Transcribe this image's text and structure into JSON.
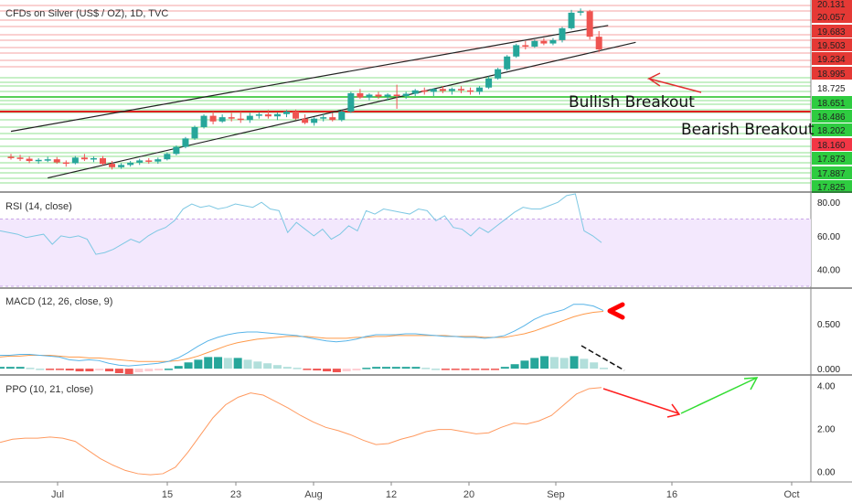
{
  "chart_data": [
    {
      "type": "candlestick",
      "title": "CFDs on Silver (US$ / OZ), 1D, TVC",
      "price_levels": [
        "20.131",
        "20.057",
        "19.683",
        "19.503",
        "19.234",
        "18.995",
        "18.725",
        "18.651",
        "18.486",
        "18.202",
        "18.160",
        "17.873",
        "17.887",
        "17.825"
      ],
      "level_colors": [
        "#e53935",
        "#e53935",
        "#e53935",
        "#e53935",
        "#e53935",
        "#e53935",
        "#ffffff",
        "#2ecc40",
        "#2ecc40",
        "#2ecc40",
        "#f23645",
        "#2ecc40",
        "#2ecc40",
        "#2ecc40"
      ],
      "level_text_colors": [
        "#222",
        "#222",
        "#222",
        "#222",
        "#222",
        "#222",
        "#222",
        "#222",
        "#222",
        "#222",
        "#ffffff",
        "#111",
        "#111",
        "#111"
      ],
      "annotations": [
        "Bullish Breakout",
        "Bearish Breakout"
      ],
      "candles": [
        [
          0,
          14.85,
          14.95,
          14.75,
          14.82
        ],
        [
          1,
          14.82,
          14.92,
          14.7,
          14.78
        ],
        [
          2,
          14.78,
          14.86,
          14.62,
          14.7
        ],
        [
          3,
          14.7,
          14.8,
          14.6,
          14.74
        ],
        [
          4,
          14.74,
          14.85,
          14.66,
          14.76
        ],
        [
          5,
          14.76,
          14.84,
          14.6,
          14.65
        ],
        [
          6,
          14.65,
          14.72,
          14.5,
          14.62
        ],
        [
          7,
          14.62,
          14.88,
          14.58,
          14.82
        ],
        [
          8,
          14.82,
          14.95,
          14.7,
          14.76
        ],
        [
          9,
          14.76,
          14.86,
          14.66,
          14.8
        ],
        [
          10,
          14.8,
          14.88,
          14.55,
          14.6
        ],
        [
          11,
          14.6,
          14.7,
          14.4,
          14.48
        ],
        [
          12,
          14.48,
          14.62,
          14.42,
          14.56
        ],
        [
          13,
          14.56,
          14.7,
          14.5,
          14.64
        ],
        [
          14,
          14.64,
          14.78,
          14.56,
          14.72
        ],
        [
          15,
          14.72,
          14.8,
          14.6,
          14.68
        ],
        [
          16,
          14.68,
          14.82,
          14.6,
          14.76
        ],
        [
          17,
          14.76,
          15.0,
          14.72,
          14.95
        ],
        [
          18,
          14.95,
          15.25,
          14.9,
          15.2
        ],
        [
          19,
          15.2,
          15.55,
          15.15,
          15.5
        ],
        [
          20,
          15.5,
          15.95,
          15.45,
          15.9
        ],
        [
          21,
          15.9,
          16.35,
          15.85,
          16.3
        ],
        [
          22,
          16.3,
          16.45,
          16.0,
          16.1
        ],
        [
          23,
          16.1,
          16.35,
          16.05,
          16.25
        ],
        [
          24,
          16.25,
          16.4,
          16.1,
          16.2
        ],
        [
          25,
          16.2,
          16.45,
          16.05,
          16.15
        ],
        [
          26,
          16.15,
          16.4,
          16.05,
          16.3
        ],
        [
          27,
          16.3,
          16.42,
          16.2,
          16.35
        ],
        [
          28,
          16.35,
          16.5,
          16.2,
          16.28
        ],
        [
          29,
          16.28,
          16.42,
          16.15,
          16.36
        ],
        [
          30,
          16.36,
          16.5,
          16.25,
          16.45
        ],
        [
          31,
          16.45,
          16.52,
          16.15,
          16.2
        ],
        [
          32,
          16.2,
          16.35,
          16.0,
          16.05
        ],
        [
          33,
          16.05,
          16.25,
          15.95,
          16.2
        ],
        [
          34,
          16.2,
          16.35,
          16.1,
          16.25
        ],
        [
          35,
          16.25,
          16.4,
          16.1,
          16.15
        ],
        [
          36,
          16.15,
          16.5,
          16.1,
          16.45
        ],
        [
          37,
          16.45,
          17.15,
          16.4,
          17.1
        ],
        [
          38,
          17.1,
          17.25,
          16.9,
          16.95
        ],
        [
          39,
          16.95,
          17.1,
          16.85,
          17.05
        ],
        [
          40,
          17.05,
          17.15,
          16.9,
          16.98
        ],
        [
          41,
          16.98,
          17.1,
          16.85,
          17.05
        ],
        [
          42,
          17.05,
          17.4,
          16.55,
          17.0
        ],
        [
          43,
          17.0,
          17.15,
          16.9,
          17.08
        ],
        [
          44,
          17.08,
          17.25,
          17.0,
          17.2
        ],
        [
          45,
          17.2,
          17.3,
          17.05,
          17.15
        ],
        [
          46,
          17.15,
          17.28,
          17.0,
          17.25
        ],
        [
          47,
          17.25,
          17.35,
          17.1,
          17.18
        ],
        [
          48,
          17.18,
          17.3,
          17.05,
          17.25
        ],
        [
          49,
          17.25,
          17.35,
          17.1,
          17.2
        ],
        [
          50,
          17.2,
          17.3,
          17.05,
          17.15
        ],
        [
          51,
          17.15,
          17.35,
          17.05,
          17.3
        ],
        [
          52,
          17.3,
          17.7,
          17.25,
          17.62
        ],
        [
          53,
          17.62,
          18.0,
          17.58,
          17.95
        ],
        [
          54,
          17.95,
          18.45,
          17.9,
          18.4
        ],
        [
          55,
          18.4,
          18.85,
          18.35,
          18.8
        ],
        [
          56,
          18.8,
          18.95,
          18.65,
          18.75
        ],
        [
          57,
          18.75,
          19.0,
          18.7,
          18.95
        ],
        [
          58,
          18.95,
          19.05,
          18.8,
          18.86
        ],
        [
          59,
          18.86,
          19.05,
          18.8,
          18.98
        ],
        [
          60,
          18.98,
          19.45,
          18.9,
          19.4
        ],
        [
          61,
          19.4,
          20.05,
          19.35,
          19.95
        ],
        [
          62,
          19.95,
          20.1,
          19.85,
          20.0
        ],
        [
          63,
          20.0,
          20.05,
          19.0,
          19.1
        ],
        [
          64,
          19.1,
          19.3,
          18.55,
          18.65
        ]
      ],
      "trendlines_price": [
        [
          [
            0,
            15.75
          ],
          [
            65,
            19.5
          ]
        ],
        [
          [
            4,
            14.1
          ],
          [
            68,
            18.9
          ]
        ]
      ],
      "arrows": [
        "red",
        "red",
        "green"
      ]
    },
    {
      "type": "line",
      "title": "RSI (14, close)",
      "ylim": [
        30,
        85
      ],
      "band": [
        30,
        70
      ],
      "ytick_labels": [
        "80.00",
        "60.00",
        "40.00"
      ],
      "yticks": [
        80,
        60,
        40
      ],
      "values": [
        63,
        62,
        61,
        59,
        60,
        61,
        55,
        60,
        59,
        60,
        58,
        49,
        50,
        52,
        55,
        58,
        56,
        60,
        63,
        65,
        69,
        76,
        79,
        77,
        78,
        76,
        77,
        79,
        78,
        77,
        80,
        76,
        75,
        62,
        68,
        64,
        60,
        64,
        58,
        61,
        66,
        63,
        75,
        73,
        76,
        75,
        74,
        73,
        76,
        75,
        69,
        72,
        65,
        64,
        60,
        65,
        62,
        66,
        70,
        74,
        77,
        76,
        76,
        78,
        80,
        84,
        85,
        63,
        60,
        56
      ]
    },
    {
      "type": "line+histogram",
      "title": "MACD (12, 26, close, 9)",
      "ylim": [
        -0.05,
        0.85
      ],
      "ytick_labels": [
        "0.500",
        "0.000"
      ],
      "yticks": [
        0.5,
        0.0
      ],
      "macd": [
        0.15,
        0.15,
        0.16,
        0.16,
        0.15,
        0.14,
        0.13,
        0.1,
        0.09,
        0.1,
        0.09,
        0.06,
        0.04,
        0.03,
        0.04,
        0.05,
        0.06,
        0.08,
        0.12,
        0.18,
        0.25,
        0.31,
        0.35,
        0.38,
        0.4,
        0.41,
        0.41,
        0.4,
        0.39,
        0.38,
        0.37,
        0.35,
        0.33,
        0.31,
        0.3,
        0.31,
        0.33,
        0.36,
        0.38,
        0.38,
        0.38,
        0.39,
        0.39,
        0.38,
        0.37,
        0.36,
        0.36,
        0.35,
        0.35,
        0.34,
        0.35,
        0.37,
        0.42,
        0.48,
        0.55,
        0.6,
        0.63,
        0.66,
        0.72,
        0.72,
        0.7,
        0.65
      ],
      "signal": [
        0.13,
        0.14,
        0.14,
        0.15,
        0.15,
        0.15,
        0.14,
        0.13,
        0.13,
        0.12,
        0.12,
        0.11,
        0.1,
        0.09,
        0.08,
        0.08,
        0.08,
        0.08,
        0.09,
        0.11,
        0.14,
        0.18,
        0.22,
        0.26,
        0.29,
        0.31,
        0.33,
        0.34,
        0.35,
        0.36,
        0.36,
        0.36,
        0.35,
        0.34,
        0.34,
        0.34,
        0.35,
        0.35,
        0.36,
        0.36,
        0.37,
        0.37,
        0.37,
        0.37,
        0.37,
        0.37,
        0.36,
        0.36,
        0.36,
        0.35,
        0.35,
        0.35,
        0.37,
        0.39,
        0.42,
        0.46,
        0.5,
        0.54,
        0.58,
        0.61,
        0.63,
        0.64
      ],
      "histogram": [
        0.02,
        0.02,
        0.02,
        0.01,
        0.0,
        -0.01,
        -0.01,
        -0.02,
        -0.03,
        -0.03,
        -0.02,
        -0.03,
        -0.05,
        -0.06,
        -0.04,
        -0.03,
        -0.02,
        0.0,
        0.03,
        0.07,
        0.1,
        0.13,
        0.13,
        0.12,
        0.12,
        0.1,
        0.08,
        0.06,
        0.04,
        0.02,
        0.01,
        -0.01,
        -0.02,
        -0.03,
        -0.04,
        -0.03,
        -0.02,
        0.01,
        0.02,
        0.02,
        0.02,
        0.02,
        0.02,
        0.01,
        0.0,
        -0.01,
        -0.01,
        -0.01,
        -0.01,
        -0.01,
        -0.01,
        0.02,
        0.05,
        0.09,
        0.12,
        0.14,
        0.13,
        0.12,
        0.14,
        0.11,
        0.07,
        0.01
      ],
      "arrow_color": "#ff0000"
    },
    {
      "type": "line",
      "title": "PPO (10, 21, close)",
      "ylim": [
        -0.4,
        4.4
      ],
      "ytick_labels": [
        "4.00",
        "2.00",
        "0.00"
      ],
      "yticks": [
        4.0,
        2.0,
        0.0
      ],
      "values": [
        1.35,
        1.5,
        1.55,
        1.55,
        1.6,
        1.55,
        1.4,
        1.0,
        0.6,
        0.3,
        0.05,
        -0.1,
        -0.15,
        -0.1,
        0.2,
        0.9,
        1.7,
        2.5,
        3.1,
        3.45,
        3.65,
        3.55,
        3.25,
        2.95,
        2.6,
        2.3,
        2.05,
        1.9,
        1.7,
        1.45,
        1.25,
        1.3,
        1.5,
        1.65,
        1.85,
        1.95,
        1.95,
        1.85,
        1.75,
        1.8,
        2.05,
        2.25,
        2.2,
        2.35,
        2.6,
        3.1,
        3.6,
        3.85,
        3.9
      ],
      "arrow_colors": [
        "#ff2020",
        "#33dd33"
      ]
    }
  ],
  "x_axis": {
    "tick_labels": [
      "Jul",
      "15",
      "23",
      "Aug",
      "12",
      "20",
      "Sep",
      "16",
      "Oct"
    ]
  },
  "colors": {
    "up": "#26a69a",
    "down": "#ef5350",
    "rsi": "#7ec8e3",
    "rsi_band": "#f3e8fd",
    "macd": "#58b4e8",
    "signal": "#ff9a4a",
    "ppo": "#ff9a60"
  }
}
